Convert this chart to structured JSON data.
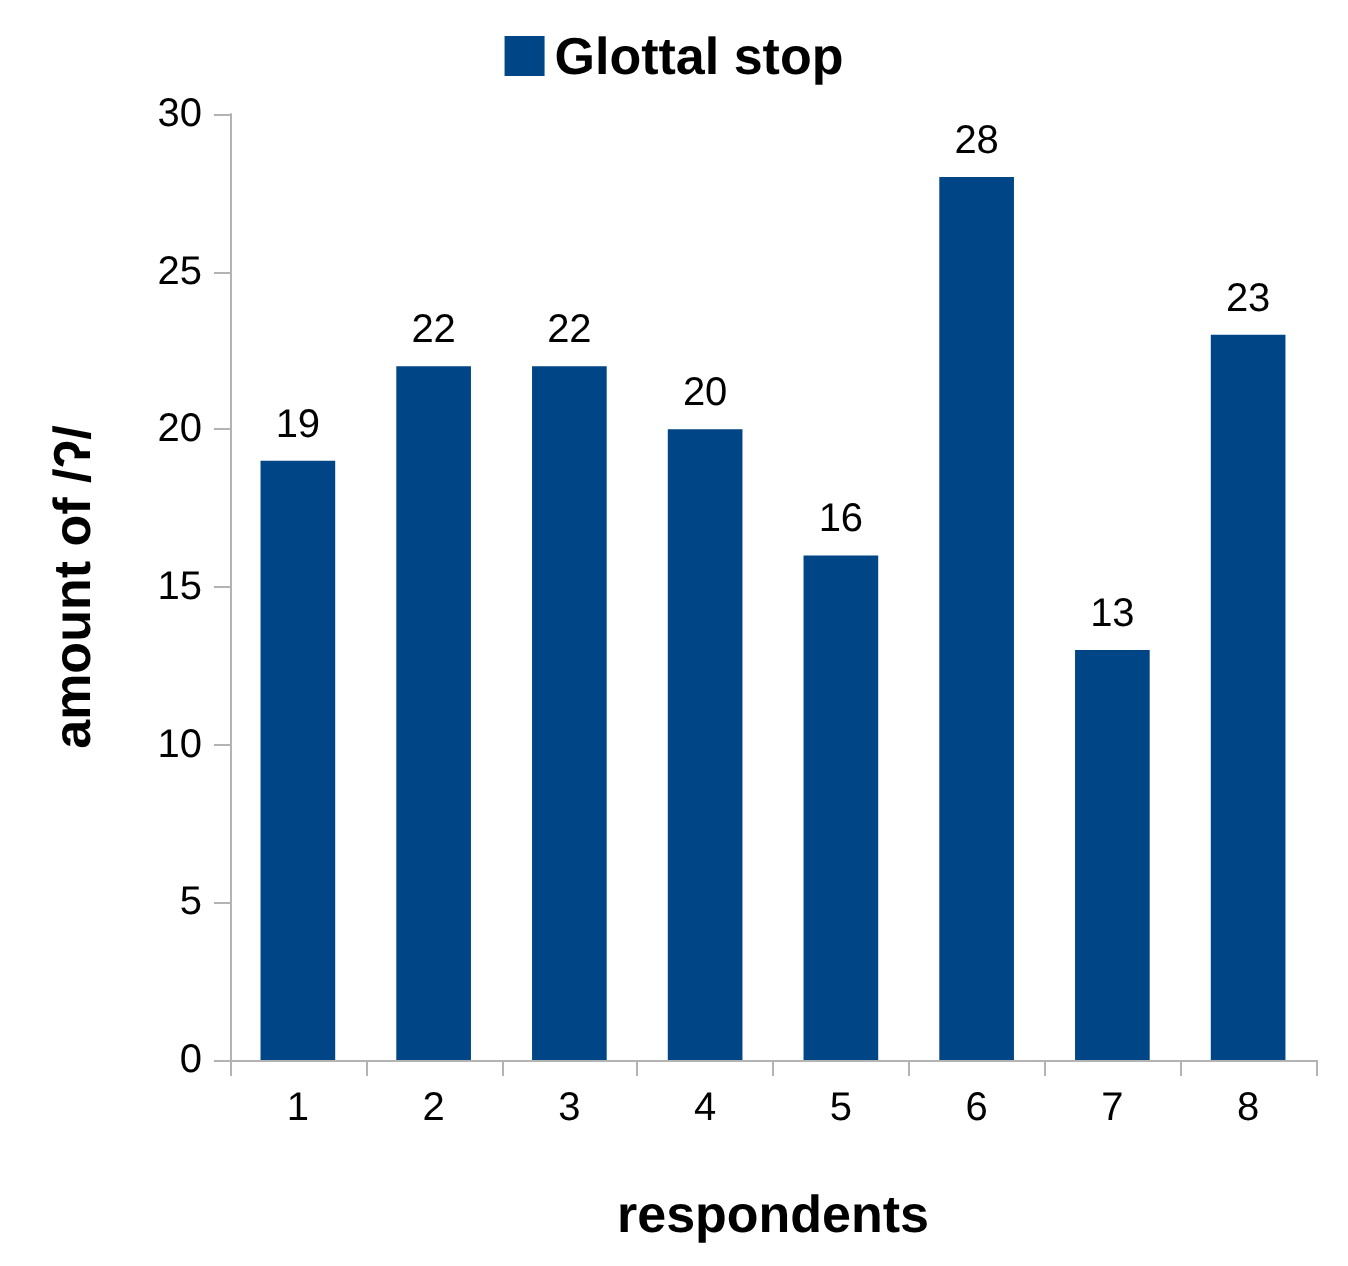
{
  "chart_data": {
    "type": "bar",
    "xlabel": "respondents",
    "ylabel": "amount of /ʔ/",
    "categories": [
      "1",
      "2",
      "3",
      "4",
      "5",
      "6",
      "7",
      "8"
    ],
    "series": [
      {
        "name": "Glottal stop",
        "color": "#004586",
        "values": [
          19,
          22,
          22,
          20,
          16,
          28,
          13,
          23
        ]
      }
    ],
    "ylim": [
      0,
      30
    ],
    "yticks": [
      0,
      5,
      10,
      15,
      20,
      25,
      30
    ],
    "grid": false,
    "legend": "top",
    "data_labels": true
  }
}
